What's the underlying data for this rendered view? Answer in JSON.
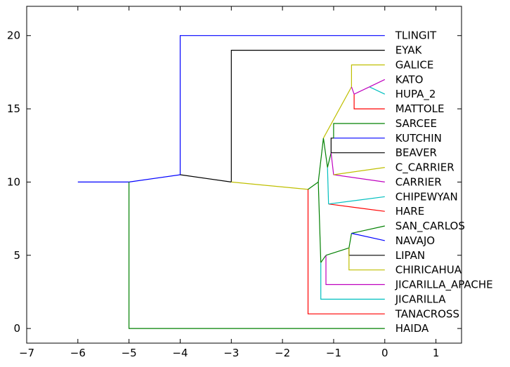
{
  "chart_data": {
    "type": "tree",
    "xlim": [
      -7,
      1.5
    ],
    "ylim": [
      -1,
      22
    ],
    "x_ticks": [
      -7,
      -6,
      -5,
      -4,
      -3,
      -2,
      -1,
      0,
      1
    ],
    "y_ticks": [
      0,
      5,
      10,
      15,
      20
    ],
    "leaves": [
      {
        "label": "TLINGIT",
        "y": 20
      },
      {
        "label": "EYAK",
        "y": 19
      },
      {
        "label": "GALICE",
        "y": 18
      },
      {
        "label": "KATO",
        "y": 17
      },
      {
        "label": "HUPA_2",
        "y": 16
      },
      {
        "label": "MATTOLE",
        "y": 15
      },
      {
        "label": "SARCEE",
        "y": 14
      },
      {
        "label": "KUTCHIN",
        "y": 13
      },
      {
        "label": "BEAVER",
        "y": 12
      },
      {
        "label": "C_CARRIER",
        "y": 11
      },
      {
        "label": "CARRIER",
        "y": 10
      },
      {
        "label": "CHIPEWYAN",
        "y": 9
      },
      {
        "label": "HARE",
        "y": 8
      },
      {
        "label": "SAN_CARLOS",
        "y": 7
      },
      {
        "label": "NAVAJO",
        "y": 6
      },
      {
        "label": "LIPAN",
        "y": 5
      },
      {
        "label": "CHIRICAHUA",
        "y": 4
      },
      {
        "label": "JICARILLA_APACHE",
        "y": 3
      },
      {
        "label": "JICARILLA",
        "y": 2
      },
      {
        "label": "TANACROSS",
        "y": 1
      },
      {
        "label": "HAIDA",
        "y": 0
      }
    ],
    "segments": [
      {
        "color": "#0000ff",
        "points": [
          [
            -6,
            10
          ],
          [
            -5,
            10
          ]
        ]
      },
      {
        "color": "#0000ff",
        "points": [
          [
            -5,
            10
          ],
          [
            -4,
            10.5
          ]
        ]
      },
      {
        "color": "#0000ff",
        "points": [
          [
            -4,
            10.5
          ],
          [
            -4,
            20
          ],
          [
            0,
            20
          ]
        ]
      },
      {
        "color": "#008000",
        "points": [
          [
            -5,
            10
          ],
          [
            -5,
            0
          ],
          [
            0,
            0
          ]
        ]
      },
      {
        "color": "#000000",
        "points": [
          [
            -4,
            10.5
          ],
          [
            -3,
            10
          ]
        ]
      },
      {
        "color": "#000000",
        "points": [
          [
            -3,
            10
          ],
          [
            -3,
            19
          ],
          [
            0,
            19
          ]
        ]
      },
      {
        "color": "#bfbf00",
        "points": [
          [
            -3,
            10
          ],
          [
            -1.5,
            9.5
          ]
        ]
      },
      {
        "color": "#ff0000",
        "points": [
          [
            -1.5,
            9.5
          ],
          [
            -1.5,
            1
          ],
          [
            0,
            1
          ]
        ]
      },
      {
        "color": "#008000",
        "points": [
          [
            -1.5,
            9.5
          ],
          [
            -1.3,
            10
          ]
        ]
      },
      {
        "color": "#008000",
        "points": [
          [
            -1.3,
            10
          ],
          [
            -1.25,
            4.5
          ]
        ]
      },
      {
        "color": "#00bfbf",
        "points": [
          [
            -1.25,
            4.5
          ],
          [
            -1.25,
            2
          ],
          [
            0,
            2
          ]
        ]
      },
      {
        "color": "#008000",
        "points": [
          [
            -1.25,
            4.5
          ],
          [
            -1.15,
            5
          ]
        ]
      },
      {
        "color": "#bf00bf",
        "points": [
          [
            -1.15,
            5
          ],
          [
            -1.15,
            3
          ],
          [
            0,
            3
          ]
        ]
      },
      {
        "color": "#008000",
        "points": [
          [
            -1.15,
            5
          ],
          [
            -0.7,
            5.5
          ]
        ]
      },
      {
        "color": "#000000",
        "points": [
          [
            -0.7,
            5.5
          ],
          [
            -0.7,
            5
          ],
          [
            0,
            5
          ]
        ]
      },
      {
        "color": "#bfbf00",
        "points": [
          [
            -0.7,
            5.5
          ],
          [
            -0.7,
            4
          ],
          [
            0,
            4
          ]
        ]
      },
      {
        "color": "#008000",
        "points": [
          [
            -0.7,
            5.5
          ],
          [
            -0.65,
            6.5
          ]
        ]
      },
      {
        "color": "#008000",
        "points": [
          [
            -0.65,
            6.5
          ],
          [
            0,
            7
          ]
        ]
      },
      {
        "color": "#0000ff",
        "points": [
          [
            -0.65,
            6.5
          ],
          [
            0,
            6
          ]
        ]
      },
      {
        "color": "#008000",
        "points": [
          [
            -1.3,
            10
          ],
          [
            -1.2,
            13
          ]
        ]
      },
      {
        "color": "#008000",
        "points": [
          [
            -1.2,
            13
          ],
          [
            -1.12,
            11
          ]
        ]
      },
      {
        "color": "#00bfbf",
        "points": [
          [
            -1.12,
            11
          ],
          [
            -1.1,
            8.5
          ]
        ]
      },
      {
        "color": "#ff0000",
        "points": [
          [
            -1.1,
            8.5
          ],
          [
            0,
            8
          ]
        ]
      },
      {
        "color": "#00bfbf",
        "points": [
          [
            -1.1,
            8.5
          ],
          [
            0,
            9
          ]
        ]
      },
      {
        "color": "#008000",
        "points": [
          [
            -1.12,
            11
          ],
          [
            -1.05,
            12
          ]
        ]
      },
      {
        "color": "#bf00bf",
        "points": [
          [
            -1.05,
            12
          ],
          [
            -1.0,
            10.5
          ],
          [
            0,
            10
          ]
        ]
      },
      {
        "color": "#bfbf00",
        "points": [
          [
            -1.0,
            10.5
          ],
          [
            0,
            11
          ]
        ]
      },
      {
        "color": "#000000",
        "points": [
          [
            -1.05,
            12
          ],
          [
            -1.05,
            12
          ],
          [
            0,
            12
          ]
        ]
      },
      {
        "color": "#000000",
        "points": [
          [
            -1.05,
            12
          ],
          [
            -1.05,
            13
          ],
          [
            -1.0,
            13
          ]
        ]
      },
      {
        "color": "#0000ff",
        "points": [
          [
            -1.0,
            13
          ],
          [
            0,
            13
          ]
        ]
      },
      {
        "color": "#008000",
        "points": [
          [
            -1.0,
            13
          ],
          [
            -1.0,
            14
          ],
          [
            0,
            14
          ]
        ]
      },
      {
        "color": "#bfbf00",
        "points": [
          [
            -1.2,
            13
          ],
          [
            -0.65,
            16.5
          ]
        ]
      },
      {
        "color": "#bfbf00",
        "points": [
          [
            -0.65,
            16.5
          ],
          [
            -0.65,
            18
          ],
          [
            0,
            18
          ]
        ]
      },
      {
        "color": "#bf00bf",
        "points": [
          [
            -0.65,
            16.5
          ],
          [
            -0.6,
            16
          ]
        ]
      },
      {
        "color": "#ff0000",
        "points": [
          [
            -0.6,
            16
          ],
          [
            -0.6,
            15
          ],
          [
            0,
            15
          ]
        ]
      },
      {
        "color": "#bf00bf",
        "points": [
          [
            -0.6,
            16
          ],
          [
            -0.3,
            16.5
          ]
        ]
      },
      {
        "color": "#00bfbf",
        "points": [
          [
            -0.3,
            16.5
          ],
          [
            0,
            16
          ]
        ]
      },
      {
        "color": "#bf00bf",
        "points": [
          [
            -0.3,
            16.5
          ],
          [
            0,
            17
          ]
        ]
      }
    ]
  }
}
